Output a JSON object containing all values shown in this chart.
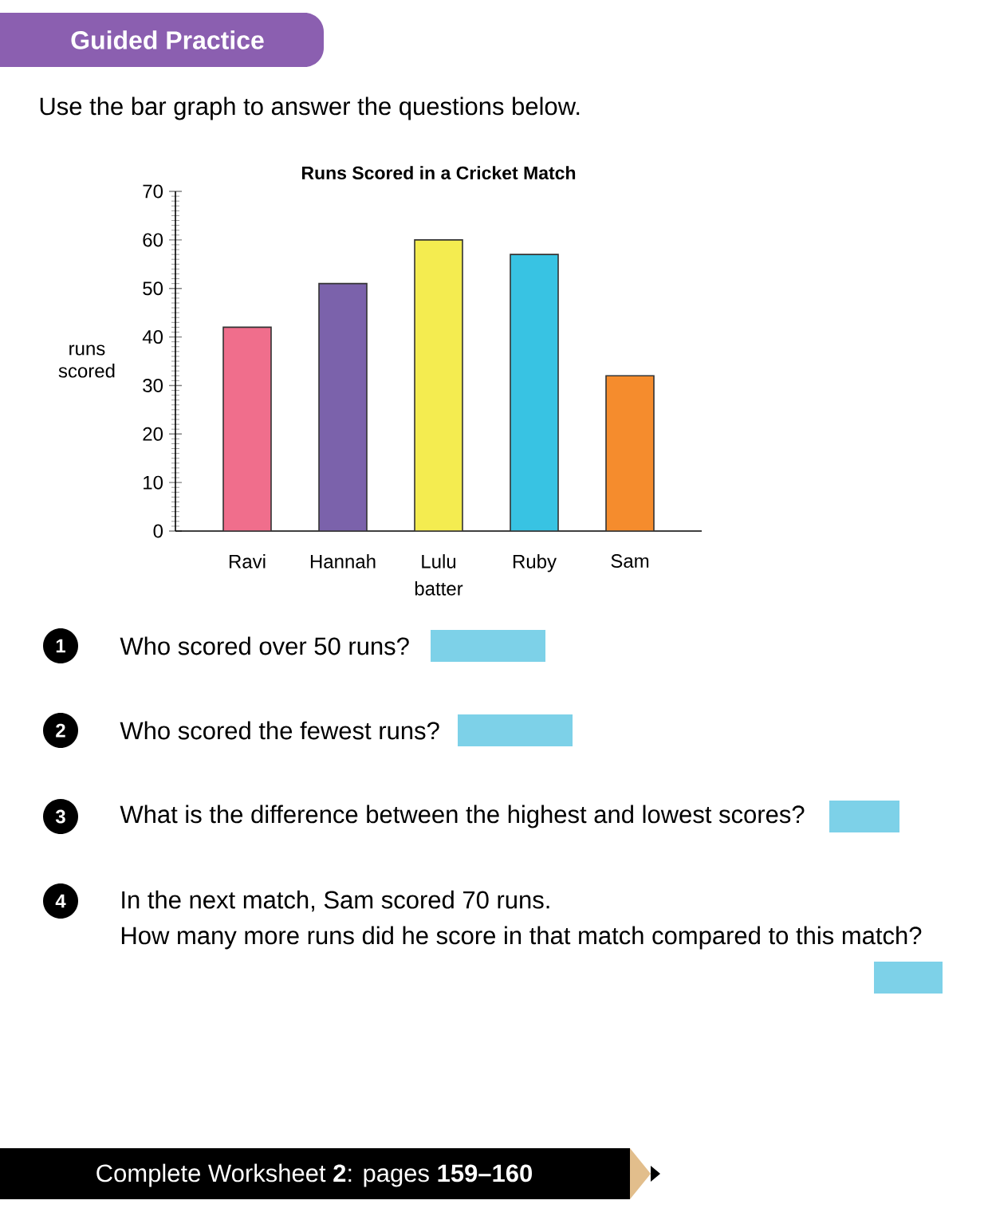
{
  "chart_data": {
    "type": "bar",
    "title": "Runs Scored in a Cricket Match",
    "xlabel": "batter",
    "ylabel": "runs scored",
    "categories": [
      "Ravi",
      "Hannah",
      "Lulu",
      "Ruby",
      "Sam"
    ],
    "values": [
      42,
      51,
      60,
      57,
      32
    ],
    "colors": [
      "#f06e8c",
      "#7b62ab",
      "#f4ec50",
      "#38c3e3",
      "#f58c2d"
    ],
    "ylim": [
      0,
      70
    ],
    "yticks": [
      0,
      10,
      20,
      30,
      40,
      50,
      60,
      70
    ],
    "annotations": [
      "Guided Practice",
      "Use the bar graph to answer the questions below.",
      "1",
      "Who scored over 50 runs?",
      "2",
      "Who scored the fewest runs?",
      "3",
      "What is the difference between the highest and lowest scores?",
      "4",
      "In the next match, Sam scored 70 runs.",
      "How many more runs did he score in that match compared to this match?",
      "Complete Worksheet **2**: pages **159–160**"
    ]
  }
}
